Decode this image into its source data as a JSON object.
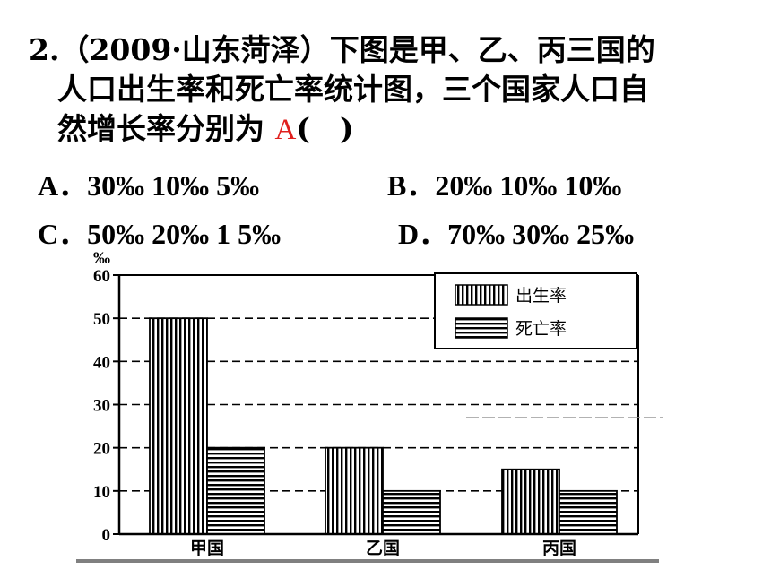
{
  "question": {
    "number": "2.",
    "source": "（2009·山东菏泽）",
    "line1_rest": "下图是甲、乙、丙三国的",
    "line2": "人口出生率和死亡率统计图，三个国家人口自",
    "line3_prefix": "然增长率分别为",
    "answer": "A",
    "blank": "(　)"
  },
  "options": [
    {
      "label": "A．",
      "text": "30‰   10‰   5‰"
    },
    {
      "label": "B．",
      "text": "20‰  10‰  10‰"
    },
    {
      "label": "C．",
      "text": "50‰   20‰  1 5‰"
    },
    {
      "label": "D．",
      "text": "70‰  30‰   25‰"
    }
  ],
  "chart_data": {
    "type": "bar",
    "ylabel": "‰",
    "ylim": [
      0,
      60
    ],
    "yticks": [
      "0",
      "10",
      "20",
      "30",
      "40",
      "50",
      "60"
    ],
    "categories": [
      "甲国",
      "乙国",
      "丙国"
    ],
    "series": [
      {
        "name": "出生率",
        "values": [
          50,
          20,
          15
        ],
        "pattern": "vertical-stripes"
      },
      {
        "name": "死亡率",
        "values": [
          20,
          10,
          10
        ],
        "pattern": "horizontal-stripes"
      }
    ],
    "grid": "dashed-horizontal",
    "legend_position": "top-right"
  },
  "colors": {
    "text": "#000000",
    "answer": "#e0201e",
    "underline": "#808080"
  }
}
